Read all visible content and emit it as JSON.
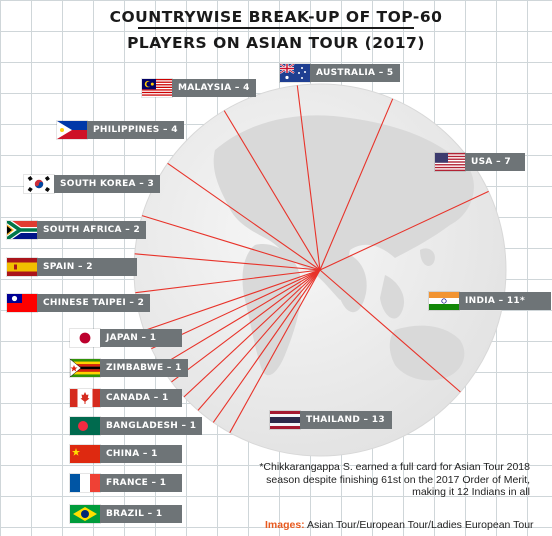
{
  "title_line1": "COUNTRYWISE BREAK-UP OF TOP-60",
  "title_line2": "PLAYERS ON ASIAN TOUR (2017)",
  "note": "*Chikkarangappa S. earned a full card for Asian Tour 2018 season despite finishing 61st on the 2017 Order of Merit, making it 12 Indians in all",
  "credit_label": "Images:",
  "credit_text": "Asian Tour/European Tour/Ladies European Tour",
  "colors": {
    "label_bg": "#6e7477",
    "globe": "#ededed",
    "spokes": "#e8332a",
    "accent": "#e85a1f"
  },
  "chart_data": {
    "type": "pie",
    "title": "COUNTRYWISE BREAK-UP OF TOP-60 PLAYERS ON ASIAN TOUR (2017)",
    "total": 60,
    "slices": [
      {
        "country": "AUSTRALIA",
        "value": 5,
        "label": "AUSTRALIA – 5",
        "flag": "australia-flag"
      },
      {
        "country": "USA",
        "value": 7,
        "label": "USA – 7",
        "flag": "usa-flag"
      },
      {
        "country": "INDIA",
        "value": 11,
        "label": "INDIA – 11*",
        "flag": "india-flag"
      },
      {
        "country": "THAILAND",
        "value": 13,
        "label": "THAILAND – 13",
        "flag": "thailand-flag"
      },
      {
        "country": "BRAZIL",
        "value": 1,
        "label": "BRAZIL – 1",
        "flag": "brazil-flag"
      },
      {
        "country": "FRANCE",
        "value": 1,
        "label": "FRANCE – 1",
        "flag": "france-flag"
      },
      {
        "country": "CHINA",
        "value": 1,
        "label": "CHINA – 1",
        "flag": "china-flag"
      },
      {
        "country": "BANGLADESH",
        "value": 1,
        "label": "BANGLADESH – 1",
        "flag": "bangladesh-flag"
      },
      {
        "country": "CANADA",
        "value": 1,
        "label": "CANADA – 1",
        "flag": "canada-flag"
      },
      {
        "country": "ZIMBABWE",
        "value": 1,
        "label": "ZIMBABWE – 1",
        "flag": "zimbabwe-flag"
      },
      {
        "country": "JAPAN",
        "value": 1,
        "label": "JAPAN – 1",
        "flag": "japan-flag"
      },
      {
        "country": "CHINESE TAIPEI",
        "value": 2,
        "label": "CHINESE TAIPEI – 2",
        "flag": "chinese-taipei-flag"
      },
      {
        "country": "SPAIN",
        "value": 2,
        "label": "SPAIN – 2",
        "flag": "spain-flag"
      },
      {
        "country": "SOUTH AFRICA",
        "value": 2,
        "label": "SOUTH AFRICA – 2",
        "flag": "south-africa-flag"
      },
      {
        "country": "SOUTH KOREA",
        "value": 3,
        "label": "SOUTH KOREA – 3",
        "flag": "south-korea-flag"
      },
      {
        "country": "PHILIPPINES",
        "value": 4,
        "label": "PHILIPPINES – 4",
        "flag": "philippines-flag"
      },
      {
        "country": "MALAYSIA",
        "value": 4,
        "label": "MALAYSIA – 4",
        "flag": "malaysia-flag"
      }
    ]
  }
}
